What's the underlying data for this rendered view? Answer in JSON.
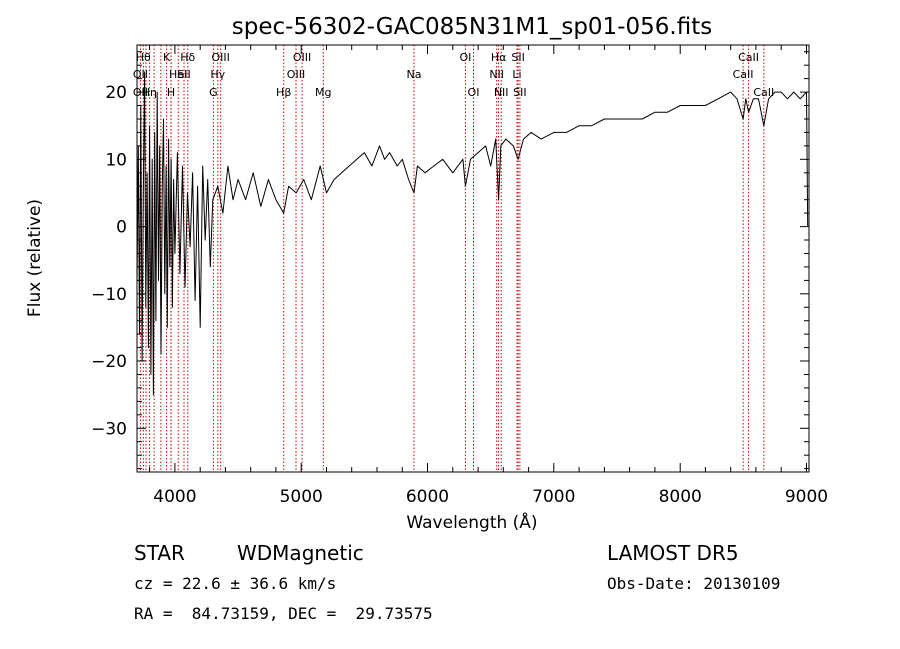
{
  "chart_data": {
    "type": "line",
    "title": "spec-56302-GAC085N31M1_sp01-056.fits",
    "xlabel": "Wavelength (Å)",
    "ylabel": "Flux (relative)",
    "xlim": [
      3700,
      9020
    ],
    "ylim": [
      -36.5,
      27
    ],
    "xticks": [
      4000,
      5000,
      6000,
      7000,
      8000,
      9000
    ],
    "yticks": [
      -30,
      -20,
      -10,
      0,
      10,
      20
    ],
    "line_color": "#000000",
    "marker_color": "#cc0000",
    "series": [
      {
        "x": [
          3700,
          3710,
          3720,
          3730,
          3740,
          3750,
          3760,
          3770,
          3780,
          3790,
          3800,
          3810,
          3820,
          3830,
          3840,
          3850,
          3860,
          3870,
          3880,
          3890,
          3900,
          3910,
          3920,
          3930,
          3940,
          3950,
          3960,
          3970,
          3980,
          3990,
          4000,
          4020,
          4040,
          4060,
          4080,
          4100,
          4120,
          4140,
          4160,
          4180,
          4200,
          4220,
          4240,
          4260,
          4280,
          4300,
          4340,
          4380,
          4420,
          4460,
          4500,
          4560,
          4620,
          4680,
          4740,
          4800,
          4861,
          4900,
          4960,
          5020,
          5080,
          5150,
          5200,
          5260,
          5320,
          5380,
          5440,
          5500,
          5560,
          5620,
          5660,
          5700,
          5760,
          5800,
          5850,
          5893,
          5920,
          5980,
          6050,
          6120,
          6200,
          6280,
          6300,
          6340,
          6400,
          6460,
          6500,
          6540,
          6563,
          6580,
          6620,
          6680,
          6717,
          6760,
          6820,
          6900,
          7000,
          7100,
          7200,
          7300,
          7400,
          7500,
          7600,
          7700,
          7800,
          7900,
          8000,
          8100,
          8200,
          8300,
          8400,
          8450,
          8498,
          8520,
          8542,
          8580,
          8620,
          8662,
          8700,
          8750,
          8800,
          8850,
          8900,
          8950,
          9000,
          9010
        ],
        "y": [
          -9,
          12,
          -16,
          18,
          -20,
          5,
          23,
          -12,
          8,
          -18,
          15,
          -22,
          10,
          -25,
          14,
          -14,
          20,
          -8,
          12,
          -19,
          6,
          16,
          -10,
          9,
          -15,
          13,
          -6,
          10,
          -12,
          7,
          -4,
          11,
          -7,
          9,
          -9,
          5,
          -3,
          8,
          -11,
          6,
          -15,
          9,
          -2,
          7,
          -6,
          4,
          6,
          2,
          9,
          4,
          7,
          4,
          8,
          3,
          7,
          4,
          2,
          6,
          5,
          7,
          4,
          9,
          5,
          7,
          8,
          9,
          10,
          11,
          9,
          12,
          10,
          11,
          9,
          10,
          7,
          5,
          9,
          8,
          9,
          10,
          8,
          10,
          6,
          10,
          11,
          12,
          9,
          13,
          4,
          12,
          13,
          12,
          10,
          13,
          14,
          13,
          14,
          14,
          15,
          15,
          16,
          16,
          16,
          16,
          17,
          17,
          18,
          18,
          18,
          19,
          20,
          19,
          16,
          19,
          17,
          19,
          19,
          15,
          19,
          20,
          20,
          19,
          20,
          19,
          20,
          0
        ]
      }
    ],
    "line_markers": [
      {
        "wl": 3727,
        "label": "OII"
      },
      {
        "wl": 3750,
        "label": "Hθ"
      },
      {
        "wl": 3771,
        "label": "Hη"
      },
      {
        "wl": 3798,
        "label": "Hη"
      },
      {
        "wl": 3835,
        "label": "Hη"
      },
      {
        "wl": 3889,
        "label": "Hζ"
      },
      {
        "wl": 3934,
        "label": "K"
      },
      {
        "wl": 3969,
        "label": "H"
      },
      {
        "wl": 3970,
        "label": "Hε"
      },
      {
        "wl": 4026,
        "label": "HeI"
      },
      {
        "wl": 4072,
        "label": "SII"
      },
      {
        "wl": 4102,
        "label": "Hδ"
      },
      {
        "wl": 4305,
        "label": "G"
      },
      {
        "wl": 4340,
        "label": "Hγ"
      },
      {
        "wl": 4363,
        "label": "OIII"
      },
      {
        "wl": 4861,
        "label": "Hβ"
      },
      {
        "wl": 4959,
        "label": "OIII"
      },
      {
        "wl": 5007,
        "label": "OIII"
      },
      {
        "wl": 5175,
        "label": "Mg"
      },
      {
        "wl": 5893,
        "label": "Na"
      },
      {
        "wl": 6300,
        "label": "OI"
      },
      {
        "wl": 6364,
        "label": "OI"
      },
      {
        "wl": 6548,
        "label": "NII"
      },
      {
        "wl": 6563,
        "label": "Hα"
      },
      {
        "wl": 6583,
        "label": "NII"
      },
      {
        "wl": 6708,
        "label": "Li"
      },
      {
        "wl": 6717,
        "label": "SII"
      },
      {
        "wl": 6731,
        "label": "SII"
      },
      {
        "wl": 8498,
        "label": "CaII"
      },
      {
        "wl": 8542,
        "label": "CaII"
      },
      {
        "wl": 8662,
        "label": "CaII"
      }
    ],
    "marker_labels": [
      {
        "text": "Hθ",
        "wl": 3750,
        "row": 0
      },
      {
        "text": "K",
        "wl": 3934,
        "row": 0
      },
      {
        "text": "Hδ",
        "wl": 4102,
        "row": 0
      },
      {
        "text": "OIII",
        "wl": 4363,
        "row": 0
      },
      {
        "text": "OIII",
        "wl": 5007,
        "row": 0
      },
      {
        "text": "OI",
        "wl": 6300,
        "row": 0
      },
      {
        "text": "Hα",
        "wl": 6563,
        "row": 0
      },
      {
        "text": "SII",
        "wl": 6717,
        "row": 0
      },
      {
        "text": "CaII",
        "wl": 8542,
        "row": 0
      },
      {
        "text": "OII",
        "wl": 3727,
        "row": 1
      },
      {
        "text": "HeI",
        "wl": 4026,
        "row": 1
      },
      {
        "text": "SII",
        "wl": 4072,
        "row": 1
      },
      {
        "text": "Hγ",
        "wl": 4340,
        "row": 1
      },
      {
        "text": "OIII",
        "wl": 4959,
        "row": 1
      },
      {
        "text": "Na",
        "wl": 5893,
        "row": 1
      },
      {
        "text": "NII",
        "wl": 6548,
        "row": 1
      },
      {
        "text": "Li",
        "wl": 6708,
        "row": 1
      },
      {
        "text": "CaII",
        "wl": 8498,
        "row": 1
      },
      {
        "text": "OII",
        "wl": 3727,
        "row": 2
      },
      {
        "text": "Hη",
        "wl": 3798,
        "row": 2
      },
      {
        "text": "H",
        "wl": 3969,
        "row": 2
      },
      {
        "text": "G",
        "wl": 4305,
        "row": 2
      },
      {
        "text": "Hβ",
        "wl": 4861,
        "row": 2
      },
      {
        "text": "Mg",
        "wl": 5175,
        "row": 2
      },
      {
        "text": "OI",
        "wl": 6364,
        "row": 2
      },
      {
        "text": "NII",
        "wl": 6583,
        "row": 2
      },
      {
        "text": "SII",
        "wl": 6731,
        "row": 2
      },
      {
        "text": "CaII",
        "wl": 8662,
        "row": 2
      }
    ]
  },
  "footer": {
    "class_label": "STAR",
    "subclass": "WDMagnetic",
    "survey": "LAMOST DR5",
    "cz_line": "cz = 22.6 ± 36.6 km/s",
    "obs_date": "Obs-Date: 20130109",
    "coords": "RA =  84.73159, DEC =  29.73575"
  }
}
